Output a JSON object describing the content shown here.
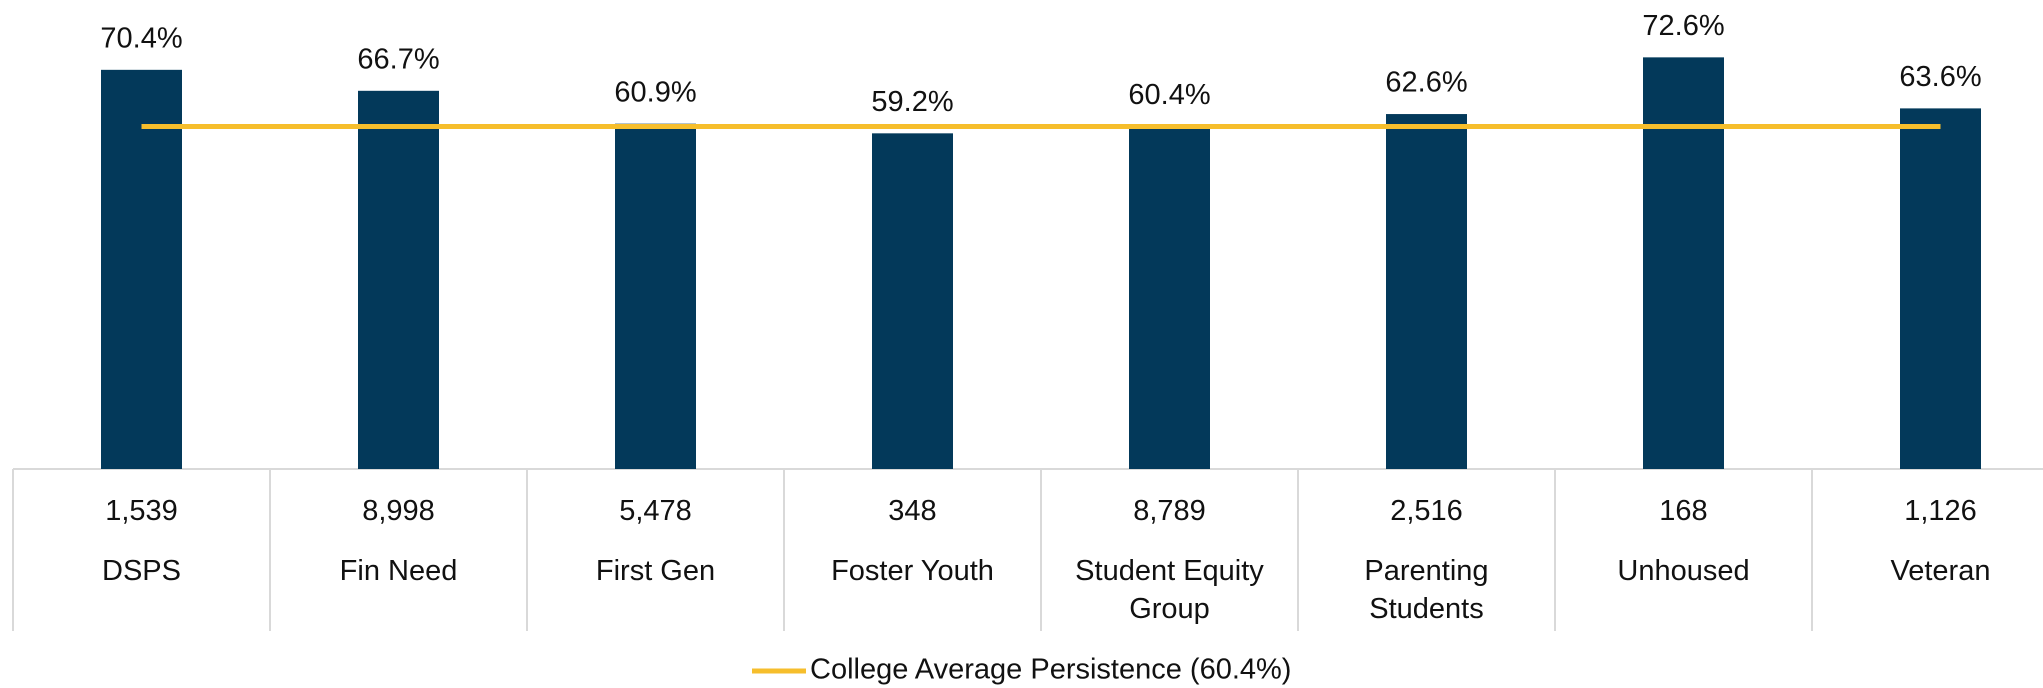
{
  "chart_data": {
    "type": "bar",
    "categories": [
      "DSPS",
      "Fin Need",
      "First Gen",
      "Foster Youth",
      "Student Equity Group",
      "Parenting Students",
      "Unhoused",
      "Veteran"
    ],
    "counts": [
      "1,539",
      "8,998",
      "5,478",
      "348",
      "8,789",
      "2,516",
      "168",
      "1,126"
    ],
    "values": [
      70.4,
      66.7,
      60.9,
      59.2,
      60.4,
      62.6,
      72.6,
      63.6
    ],
    "value_labels": [
      "70.4%",
      "66.7%",
      "60.9%",
      "59.2%",
      "60.4%",
      "62.6%",
      "72.6%",
      "63.6%"
    ],
    "color": "#03395a",
    "average": {
      "name": "College Average Persistence (60.4%)",
      "value": 60.4,
      "color": "#f6be2c"
    }
  }
}
